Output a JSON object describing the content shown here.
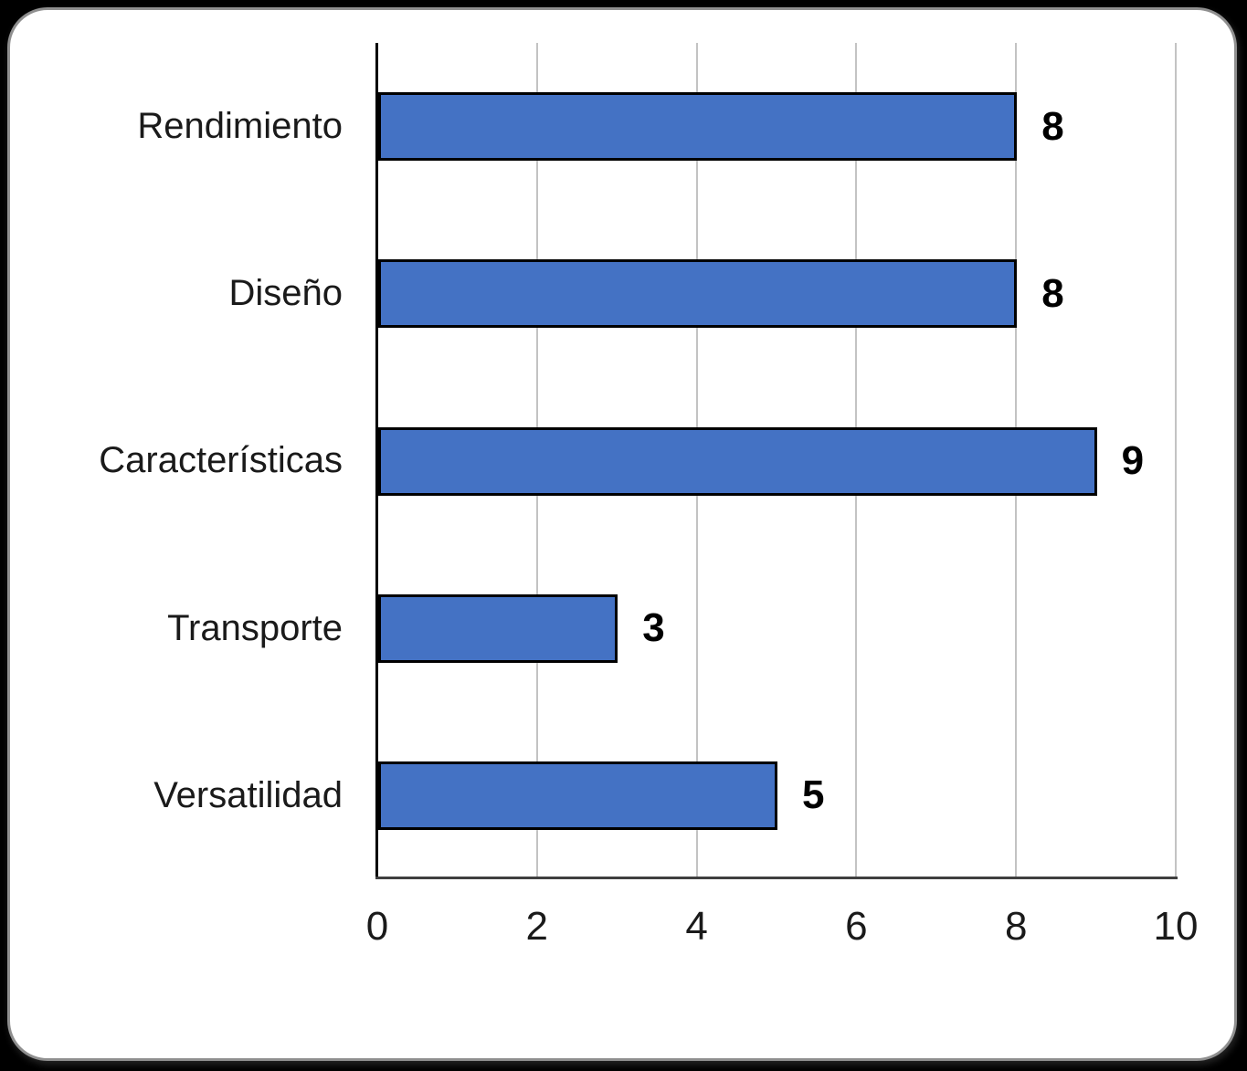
{
  "chart_data": {
    "type": "bar",
    "orientation": "horizontal",
    "title": "",
    "xlabel": "",
    "ylabel": "",
    "categories": [
      "Rendimiento",
      "Diseño",
      "Características",
      "Transporte",
      "Versatilidad"
    ],
    "values": [
      8,
      8,
      9,
      3,
      5
    ],
    "data_labels": [
      "8",
      "8",
      "9",
      "3",
      "5"
    ],
    "xticks": [
      "0",
      "2",
      "4",
      "6",
      "8",
      "10"
    ],
    "xtick_values": [
      0,
      2,
      4,
      6,
      8,
      10
    ],
    "xlim": [
      0,
      10
    ],
    "grid": true,
    "legend": false,
    "bar_color": "#4472C4",
    "bar_border_color": "#000000",
    "gridline_color": "#c3c3c3",
    "axis_color": "#000000",
    "baseline_color": "#3f3f3f",
    "background_color": "#ffffff"
  }
}
